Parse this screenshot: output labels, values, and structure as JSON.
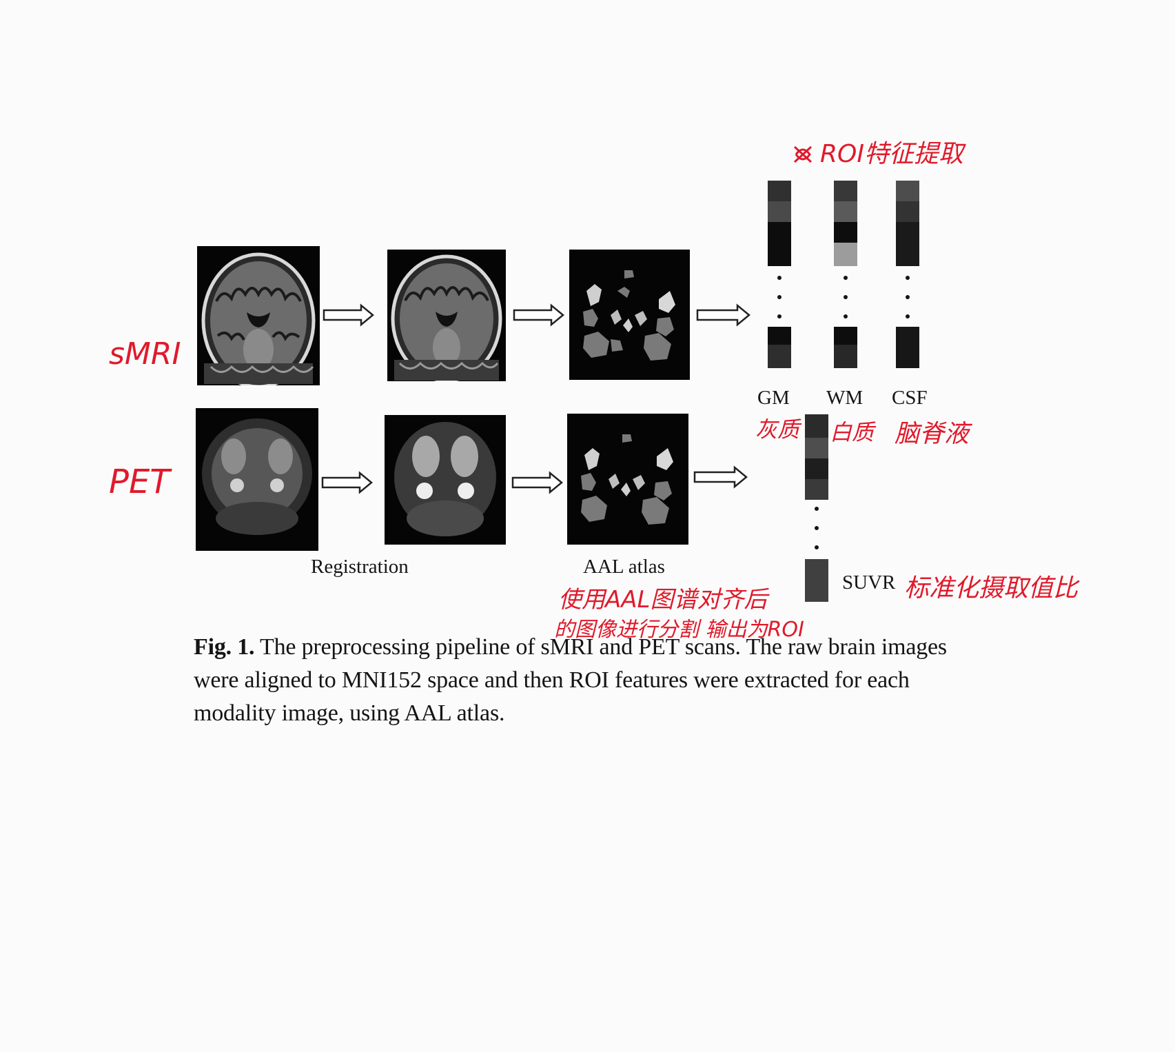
{
  "rows": {
    "smri_label": "sMRI",
    "pet_label": "PET"
  },
  "steps": {
    "registration_label": "Registration",
    "atlas_label": "AAL atlas"
  },
  "features": {
    "columns": [
      "GM",
      "WM",
      "CSF"
    ],
    "suvr_label": "SUVR"
  },
  "annotations": {
    "roi_extraction": "ROI特征提取",
    "gm_cn": "灰质",
    "wm_cn": "白质",
    "csf_cn": "脑脊液",
    "suvr_cn": "标准化摄取值比",
    "atlas_line1": "使用AAL图谱对齐后",
    "atlas_line2": "的图像进行分割 输出为ROI"
  },
  "caption": {
    "label": "Fig. 1.",
    "text": " The preprocessing pipeline of sMRI and PET scans. The raw brain images were aligned to MNI152 space and then ROI features were extracted for each modality image, using AAL atlas."
  },
  "colors": {
    "annotation": "#e01a2b",
    "image_background": "#050505"
  }
}
